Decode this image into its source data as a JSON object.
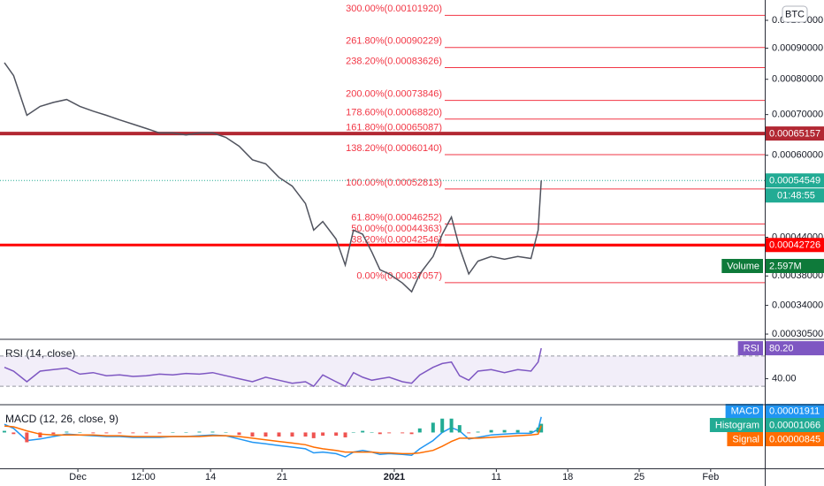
{
  "chart_data": [
    {
      "type": "line",
      "log_scale": true,
      "currency": "BTC",
      "xlim": [
        -7.63,
        67.3
      ],
      "ylim": [
        0.0003,
        0.00108
      ],
      "yticks": [
        {
          "value": 0.000305,
          "label": "0.00030500"
        },
        {
          "value": 0.00034,
          "label": "0.00034000"
        },
        {
          "value": 0.00038,
          "label": "0.00038000"
        },
        {
          "value": 0.00044,
          "label": "0.00044000"
        },
        {
          "value": 0.0006,
          "label": "0.00060000"
        },
        {
          "value": 0.0007,
          "label": "0.00070000"
        },
        {
          "value": 0.0008,
          "label": "0.00080000"
        },
        {
          "value": 0.0009,
          "label": "0.00090000"
        },
        {
          "value": 0.001,
          "label": "0.00100000"
        }
      ],
      "x": [
        -7.2,
        -6.3,
        -5.0,
        -3.7,
        -2.4,
        -1.1,
        0.2,
        1.5,
        2.8,
        4.1,
        5.4,
        6.7,
        8.0,
        9.3,
        10.6,
        11.9,
        13.2,
        14.5,
        15.8,
        17.1,
        18.4,
        19.7,
        21.0,
        22.3,
        23.1,
        24.0,
        25.3,
        26.2,
        27.0,
        27.9,
        28.8,
        29.6,
        30.5,
        31.8,
        32.7,
        33.5,
        34.8,
        35.7,
        36.6,
        37.4,
        38.3,
        39.2,
        40.5,
        41.8,
        43.1,
        44.4,
        45.1,
        45.4
      ],
      "series": [
        {
          "color": "#50535e",
          "values": [
            0.000852,
            0.000811,
            0.000698,
            0.000722,
            0.000733,
            0.000741,
            0.000722,
            0.000709,
            0.000698,
            0.000686,
            0.000675,
            0.000664,
            0.000653,
            0.000653,
            0.000648,
            0.000653,
            0.000653,
            0.000642,
            0.000621,
            0.00059,
            0.000581,
            0.000552,
            0.000534,
            0.0005,
            0.000452,
            0.000467,
            0.000437,
            0.000396,
            0.000452,
            0.000445,
            0.000416,
            0.000389,
            0.000383,
            0.00037,
            0.000358,
            0.000383,
            0.000409,
            0.000445,
            0.000475,
            0.000423,
            0.000383,
            0.000402,
            0.000409,
            0.000405,
            0.000409,
            0.000406,
            0.000452,
            0.00054549
          ]
        }
      ],
      "fib_levels": [
        {
          "label": "300.00%(0.00101920)",
          "value": 0.0010192
        },
        {
          "label": "261.80%(0.00090229)",
          "value": 0.00090229
        },
        {
          "label": "238.20%(0.00083626)",
          "value": 0.00083626
        },
        {
          "label": "200.00%(0.00073846)",
          "value": 0.00073846
        },
        {
          "label": "178.60%(0.00068820)",
          "value": 0.0006882
        },
        {
          "label": "161.80%(0.00065087)",
          "value": 0.00065087
        },
        {
          "label": "138.20%(0.00060140)",
          "value": 0.0006014
        },
        {
          "label": "100.00%(0.00052813)",
          "value": 0.00052813
        },
        {
          "label": "61.80%(0.00046252)",
          "value": 0.00046252
        },
        {
          "label": "50.00%(0.00044363)",
          "value": 0.00044363
        },
        {
          "label": "38.20%(0.00042546)",
          "value": 0.00042546
        },
        {
          "label": "0.00%(0.00037057)",
          "value": 0.00037057
        }
      ],
      "fib_color": "#f23645",
      "price_lines": [
        {
          "value": 0.00065157,
          "color": "#b22833",
          "width": 4
        },
        {
          "value": 0.00042726,
          "color": "#ff0000",
          "width": 3
        }
      ],
      "last_price": {
        "value": 0.00054549,
        "countdown": "01:48:55",
        "color": "#22ab94"
      },
      "volume": {
        "name": "Volume",
        "value": {
          "value": 2597000,
          "label": "2.597M"
        },
        "color": "#0e7a3a"
      }
    },
    {
      "type": "line",
      "title": "RSI (14, close)",
      "xlim": [
        -7.63,
        67.3
      ],
      "ylim": [
        6.9,
        90.8
      ],
      "yticks": [
        {
          "value": 40,
          "label": "40.00"
        }
      ],
      "band": [
        30,
        70
      ],
      "band_color": "#7e57c2",
      "x": [
        -7.2,
        -6.3,
        -5.0,
        -3.7,
        -2.4,
        -1.1,
        0.2,
        1.5,
        2.8,
        4.1,
        5.4,
        6.7,
        8.0,
        9.3,
        10.6,
        11.9,
        13.2,
        14.5,
        15.8,
        17.1,
        18.4,
        19.7,
        21.0,
        22.3,
        23.1,
        24.0,
        25.3,
        26.2,
        27.0,
        27.9,
        28.8,
        29.6,
        30.5,
        31.8,
        32.7,
        33.5,
        34.8,
        35.7,
        36.6,
        37.4,
        38.3,
        39.2,
        40.5,
        41.8,
        43.1,
        44.4,
        45.1,
        45.4
      ],
      "series": [
        {
          "name": "RSI",
          "color": "#7e57c2",
          "last": {
            "value": 80.2,
            "label": "80.20"
          },
          "values": [
            55,
            50,
            36,
            50,
            52,
            54,
            46,
            48,
            44,
            45,
            43,
            44,
            46,
            45,
            47,
            46,
            48,
            44,
            40,
            36,
            42,
            38,
            34,
            36,
            30,
            45,
            36,
            30,
            48,
            42,
            38,
            40,
            42,
            36,
            34,
            45,
            55,
            60,
            62,
            44,
            38,
            50,
            52,
            48,
            52,
            50,
            62,
            80.2
          ]
        }
      ]
    },
    {
      "type": "macd",
      "title": "MACD (12, 26, close, 9)",
      "xlim": [
        -7.63,
        67.3
      ],
      "ylim": [
        -4.4e-05,
        3.3e-05
      ],
      "xticks": [
        {
          "value": 0,
          "label": "Dec"
        },
        {
          "value": 6.4,
          "label": "12:00"
        },
        {
          "value": 13,
          "label": "14"
        },
        {
          "value": 20,
          "label": "21"
        },
        {
          "value": 31,
          "label": "2021"
        },
        {
          "value": 41,
          "label": "11"
        },
        {
          "value": 48,
          "label": "18"
        },
        {
          "value": 55,
          "label": "25"
        },
        {
          "value": 62,
          "label": "Feb"
        }
      ],
      "x": [
        -7.2,
        -6.3,
        -5.0,
        -3.7,
        -2.4,
        -1.1,
        0.2,
        1.5,
        2.8,
        4.1,
        5.4,
        6.7,
        8.0,
        9.3,
        10.6,
        11.9,
        13.2,
        14.5,
        15.8,
        17.1,
        18.4,
        19.7,
        21.0,
        22.3,
        23.1,
        24.0,
        25.3,
        26.2,
        27.0,
        27.9,
        28.8,
        29.6,
        30.5,
        31.8,
        32.7,
        33.5,
        34.8,
        35.7,
        36.6,
        37.4,
        38.3,
        39.2,
        40.5,
        41.8,
        43.1,
        44.4,
        45.1,
        45.4
      ],
      "series": [
        {
          "name": "MACD",
          "color": "#2196f3",
          "last": 1.911e-05,
          "values": [
            1e-05,
            5e-06,
            -1e-05,
            -8e-06,
            -5e-06,
            -2e-06,
            -3e-06,
            -4e-06,
            -5e-06,
            -5e-06,
            -6e-06,
            -6e-06,
            -6e-06,
            -5e-06,
            -5e-06,
            -4e-06,
            -3e-06,
            -4e-06,
            -8e-06,
            -1.2e-05,
            -1.4e-05,
            -1.6e-05,
            -1.8e-05,
            -2e-05,
            -2.5e-05,
            -2.4e-05,
            -2.6e-05,
            -3e-05,
            -2.4e-05,
            -2.2e-05,
            -2.4e-05,
            -2.7e-05,
            -2.6e-05,
            -2.7e-05,
            -2.8e-05,
            -2e-05,
            -1e-05,
            0,
            6e-06,
            2e-06,
            -8e-06,
            -6e-06,
            -3e-06,
            -2e-06,
            -1e-06,
            -1e-06,
            4e-06,
            1.911e-05
          ]
        },
        {
          "name": "Histogram",
          "color": "#22ab94",
          "negative_color": "#ef5350",
          "histogram": true,
          "last": 1.066e-05,
          "values": [
            2e-06,
            -2e-06,
            -1.2e-05,
            -6e-06,
            -2e-06,
            1e-06,
            0,
            -1e-06,
            -1e-06,
            -1e-06,
            -1e-06,
            -1e-06,
            -1e-06,
            0,
            0,
            1e-06,
            1e-06,
            0,
            -3e-06,
            -5e-06,
            -5e-06,
            -5e-06,
            -5e-06,
            -5e-06,
            -7e-06,
            -4e-06,
            -4e-06,
            -6e-06,
            0,
            2e-06,
            0,
            -2e-06,
            -1e-06,
            -1e-06,
            -2e-06,
            5e-06,
            1.2e-05,
            1.7e-05,
            1.7e-05,
            9e-06,
            -1e-06,
            1e-06,
            3e-06,
            3e-06,
            3e-06,
            2e-06,
            6e-06,
            1.066e-05
          ]
        },
        {
          "name": "Signal",
          "color": "#ff6d00",
          "last": 8.45e-06,
          "values": [
            8e-06,
            7e-06,
            2e-06,
            -2e-06,
            -3e-06,
            -3e-06,
            -3e-06,
            -3e-06,
            -4e-06,
            -4e-06,
            -5e-06,
            -5e-06,
            -5e-06,
            -5e-06,
            -5e-06,
            -5e-06,
            -4e-06,
            -4e-06,
            -5e-06,
            -7e-06,
            -9e-06,
            -1.1e-05,
            -1.3e-05,
            -1.5e-05,
            -1.8e-05,
            -2e-05,
            -2.2e-05,
            -2.4e-05,
            -2.4e-05,
            -2.4e-05,
            -2.4e-05,
            -2.5e-05,
            -2.5e-05,
            -2.6e-05,
            -2.6e-05,
            -2.5e-05,
            -2.2e-05,
            -1.7e-05,
            -1.1e-05,
            -7e-06,
            -7e-06,
            -7e-06,
            -6e-06,
            -5e-06,
            -4e-06,
            -3e-06,
            -2e-06,
            8.45e-06
          ]
        }
      ]
    }
  ]
}
